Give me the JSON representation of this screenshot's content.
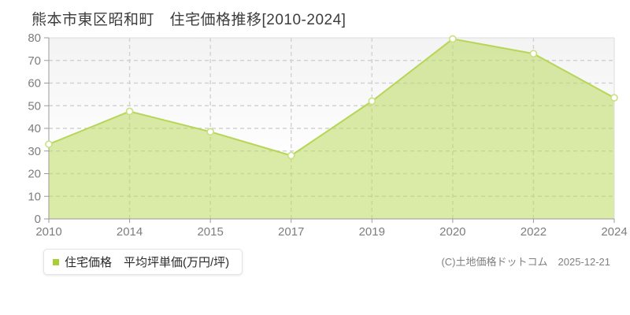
{
  "header": {
    "title": "熊本市東区昭和町　住宅価格推移[2010-2024]"
  },
  "legend": {
    "marker_color": "#a8ce34",
    "label": "住宅価格　平均坪単価(万円/坪)"
  },
  "footer": {
    "copyright": "(C)土地価格ドットコム　2025-12-21"
  },
  "chart_data": {
    "type": "area",
    "title": "熊本市東区昭和町 住宅価格推移[2010-2024]",
    "categories": [
      "2010",
      "2014",
      "2015",
      "2017",
      "2019",
      "2020",
      "2022",
      "2024"
    ],
    "series": [
      {
        "name": "住宅価格 平均坪単価(万円/坪)",
        "values": [
          33,
          47.5,
          38.5,
          28,
          52,
          79.5,
          73,
          53.5
        ]
      }
    ],
    "xlabel": "",
    "ylabel": "",
    "ylim": [
      0,
      80
    ],
    "ytick_step": 10,
    "grid": "dashed",
    "legend_position": "bottom-left",
    "colors": {
      "line": "#b7d557",
      "fill": "#bcd95e",
      "fill_opacity": 0.55,
      "marker_fill": "#ffffff",
      "marker_stroke": "#c9e07f",
      "grid": "#d2d2d2",
      "axis": "#9a9a9a",
      "tick_label": "#7d7d7d",
      "border": "#dcdcdc",
      "plot_bg_top": "#f3f3f3",
      "plot_bg_bottom": "#ffffff"
    }
  }
}
